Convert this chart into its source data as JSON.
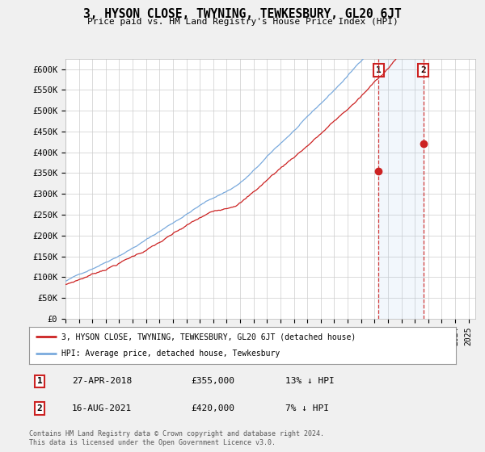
{
  "title": "3, HYSON CLOSE, TWYNING, TEWKESBURY, GL20 6JT",
  "subtitle": "Price paid vs. HM Land Registry's House Price Index (HPI)",
  "ylim": [
    0,
    625000
  ],
  "yticks": [
    0,
    50000,
    100000,
    150000,
    200000,
    250000,
    300000,
    350000,
    400000,
    450000,
    500000,
    550000,
    600000
  ],
  "ytick_labels": [
    "£0",
    "£50K",
    "£100K",
    "£150K",
    "£200K",
    "£250K",
    "£300K",
    "£350K",
    "£400K",
    "£450K",
    "£500K",
    "£550K",
    "£600K"
  ],
  "hpi_color": "#7aaadd",
  "price_color": "#cc2222",
  "marker1_date": "27-APR-2018",
  "marker1_price": "£355,000",
  "marker1_hpi_pct": "13% ↓ HPI",
  "marker1_x_year": 2018.29,
  "marker1_y": 355000,
  "marker2_date": "16-AUG-2021",
  "marker2_price": "£420,000",
  "marker2_hpi_pct": "7% ↓ HPI",
  "marker2_x_year": 2021.62,
  "marker2_y": 420000,
  "legend_label1": "3, HYSON CLOSE, TWYNING, TEWKESBURY, GL20 6JT (detached house)",
  "legend_label2": "HPI: Average price, detached house, Tewkesbury",
  "footer": "Contains HM Land Registry data © Crown copyright and database right 2024.\nThis data is licensed under the Open Government Licence v3.0.",
  "background_color": "#f0f0f0",
  "plot_bg_color": "#ffffff",
  "grid_color": "#cccccc",
  "span_color": "#ddeeff",
  "xlim_start": 1995,
  "xlim_end": 2025.5
}
